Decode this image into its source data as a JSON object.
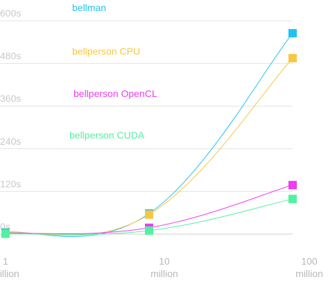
{
  "chart_data": {
    "type": "line",
    "x_scale": "log",
    "x": [
      1,
      10,
      100
    ],
    "x_tick_labels": [
      {
        "value": 1,
        "line1": "1",
        "line2": "million"
      },
      {
        "value": 10,
        "line1": "10",
        "line2": "million"
      },
      {
        "value": 100,
        "line1": "100",
        "line2": "million"
      }
    ],
    "y_ticks": [
      {
        "value": 0,
        "label": "0s"
      },
      {
        "value": 120,
        "label": "120s"
      },
      {
        "value": 240,
        "label": "240s"
      },
      {
        "value": 360,
        "label": "360s"
      },
      {
        "value": 480,
        "label": "480s"
      },
      {
        "value": 600,
        "label": "600s"
      }
    ],
    "ylim": [
      0,
      600
    ],
    "grid": true,
    "legend_placement": "top-left, stacked",
    "series": [
      {
        "name": "bellman",
        "color": "#1ec4f0",
        "values": [
          5,
          58,
          565
        ]
      },
      {
        "name": "bellperson CPU",
        "color": "#f7c743",
        "values": [
          3,
          55,
          495
        ]
      },
      {
        "name": "bellperson OpenCL",
        "color": "#f23af0",
        "values": [
          2,
          18,
          138
        ]
      },
      {
        "name": "bellperson CUDA",
        "color": "#50f2a0",
        "values": [
          1,
          10,
          99
        ]
      }
    ]
  }
}
